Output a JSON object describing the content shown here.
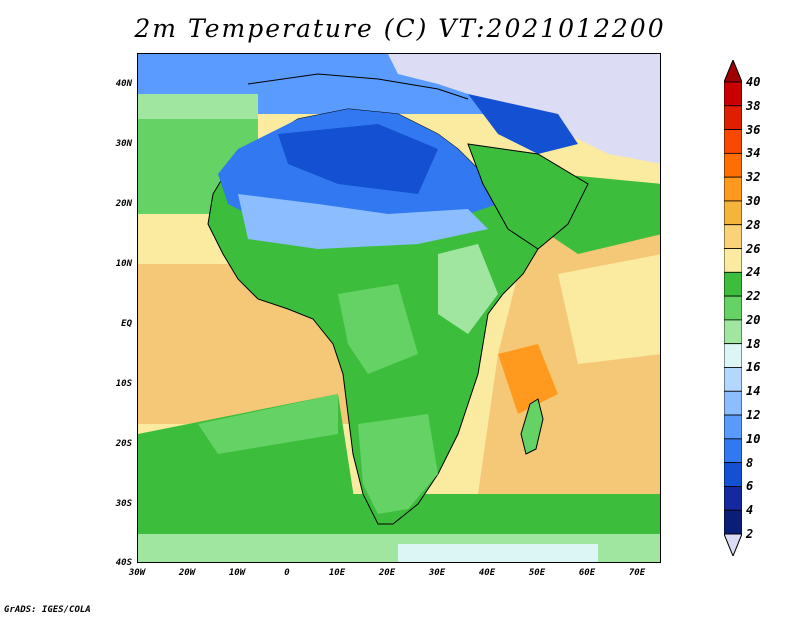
{
  "title": "2m Temperature (C) VT:2021012200",
  "credit": "GrADS: IGES/COLA",
  "map": {
    "lat_labels": [
      "40N",
      "30N",
      "20N",
      "10N",
      "EQ",
      "10S",
      "20S",
      "30S",
      "40S"
    ],
    "lon_labels": [
      "30W",
      "20W",
      "10W",
      "0",
      "10E",
      "20E",
      "30E",
      "40E",
      "50E",
      "60E",
      "70E"
    ],
    "extent": {
      "lon": [
        -30,
        75
      ],
      "lat": [
        -40,
        45
      ]
    }
  },
  "colorbar": {
    "labels": [
      "40",
      "38",
      "36",
      "34",
      "32",
      "30",
      "28",
      "26",
      "24",
      "22",
      "20",
      "18",
      "16",
      "14",
      "12",
      "10",
      "8",
      "6",
      "4",
      "2"
    ],
    "colors": [
      "#a00000",
      "#c80000",
      "#e01e00",
      "#f84800",
      "#ff6e00",
      "#ff9a1e",
      "#f5b43c",
      "#fad278",
      "#faeba0",
      "#3cbe3c",
      "#64d264",
      "#a0e6a0",
      "#dcf5f5",
      "#b4d7ff",
      "#8cbeff",
      "#5a9bff",
      "#3278f0",
      "#1450d2",
      "#1428a0",
      "#0a1e78",
      "#dcdcf5"
    ]
  },
  "colors": {
    "ocean_warm": "#f5c878",
    "ocean_mild": "#faeba0",
    "ocean_green": "#3cbe3c",
    "ocean_light_green": "#a0e6a0",
    "sahara_blue": "#3278f0",
    "cold_north": "#dcdcf5"
  }
}
